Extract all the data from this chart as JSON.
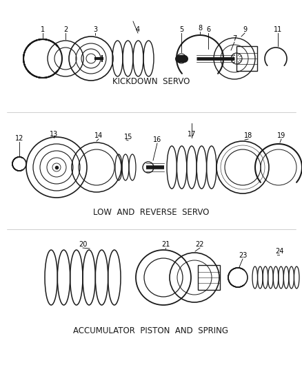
{
  "background_color": "#ffffff",
  "line_color": "#1a1a1a",
  "fig_width": 4.39,
  "fig_height": 5.33,
  "dpi": 100,
  "section_labels": [
    "KICKDOWN  SERVO",
    "LOW  AND  REVERSE  SERVO",
    "ACCUMULATOR  PISTON  AND  SPRING"
  ]
}
